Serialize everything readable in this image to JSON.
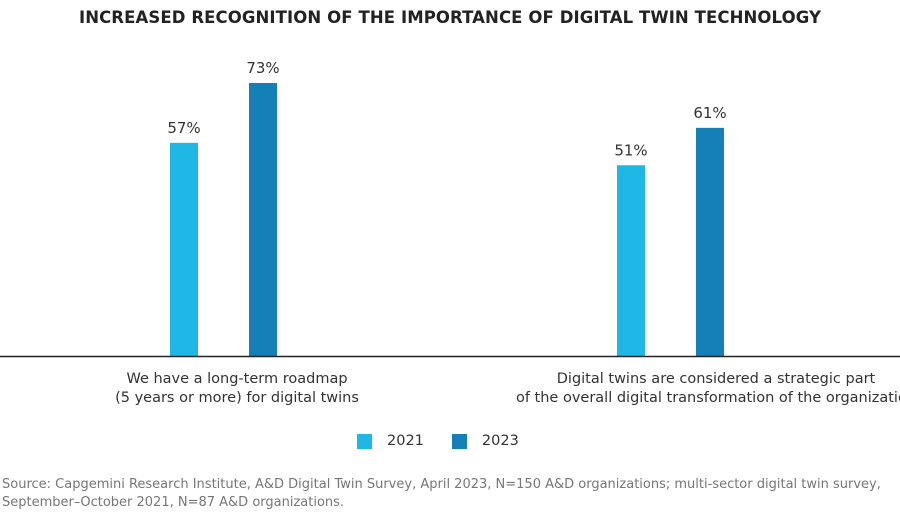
{
  "chart_data": {
    "type": "bar",
    "title": "INCREASED RECOGNITION OF THE IMPORTANCE OF DIGITAL TWIN TECHNOLOGY",
    "categories": [
      "We have a long-term roadmap\n(5 years or more) for digital twins",
      "Digital twins are considered a strategic part\nof the overall digital transformation of the organization"
    ],
    "series": [
      {
        "name": "2021",
        "values": [
          57,
          51
        ],
        "labels": [
          "57%",
          "51%"
        ],
        "color": "#1fb8e6"
      },
      {
        "name": "2023",
        "values": [
          73,
          61
        ],
        "labels": [
          "73%",
          "61%"
        ],
        "color": "#157fb7"
      }
    ],
    "ylim": [
      0,
      100
    ],
    "grid": false,
    "legend": "bottom-center",
    "source": "Source: Capgemini Research Institute, A&D Digital Twin Survey, April 2023, N=150 A&D organizations; multi-sector digital twin survey, September–October 2021, N=87 A&D organizations."
  }
}
